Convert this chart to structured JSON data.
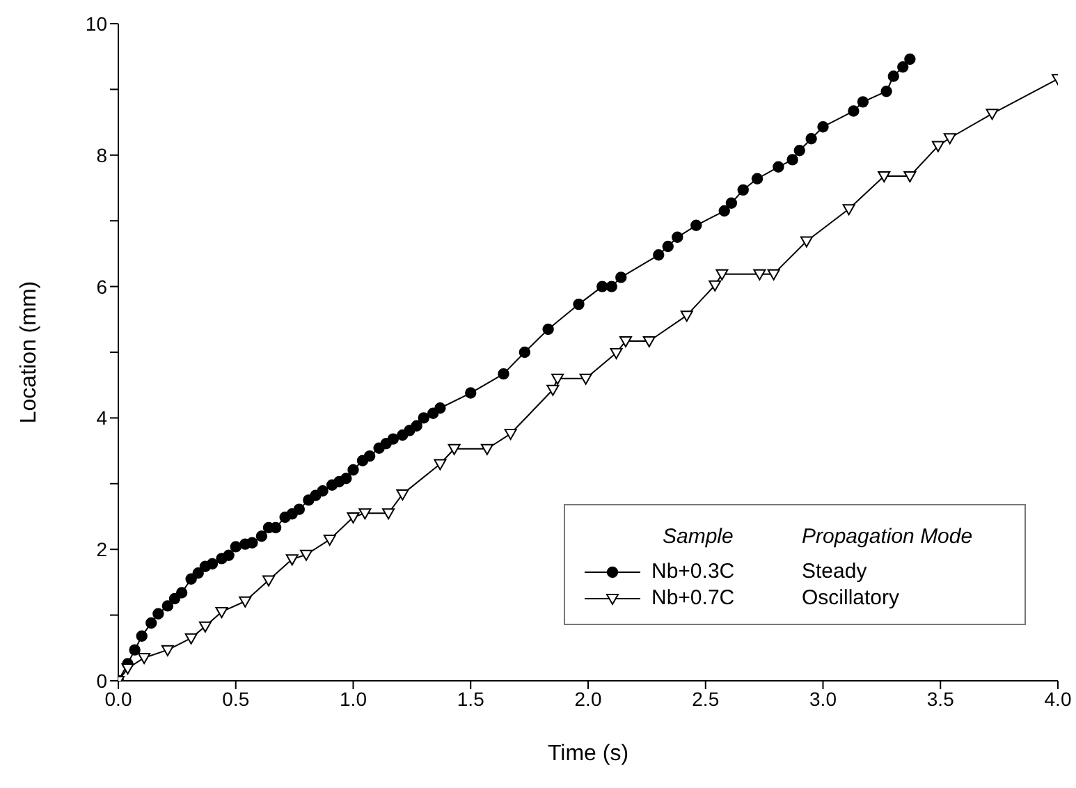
{
  "chart_data": {
    "type": "line",
    "xlabel": "Time (s)",
    "ylabel": "Location (mm)",
    "xlim": [
      0,
      4
    ],
    "xticks": [
      {
        "value": 0,
        "label": "0.0"
      },
      {
        "value": 0.5,
        "label": "0.5"
      },
      {
        "value": 1,
        "label": "1.0"
      },
      {
        "value": 1.5,
        "label": "1.5"
      },
      {
        "value": 2,
        "label": "2.0"
      },
      {
        "value": 2.5,
        "label": "2.5"
      },
      {
        "value": 3,
        "label": "3.0"
      },
      {
        "value": 3.5,
        "label": "3.5"
      },
      {
        "value": 4,
        "label": "4.0"
      }
    ],
    "ylim": [
      0,
      10
    ],
    "yticks": [
      0,
      {
        "value": 1,
        "label": null
      },
      2,
      {
        "value": 3,
        "label": null
      },
      4,
      {
        "value": 5,
        "label": null
      },
      6,
      {
        "value": 7,
        "label": null
      },
      8,
      {
        "value": 9,
        "label": null
      },
      10
    ],
    "grid": false,
    "legend": "bottom right",
    "legend_title": "Sample",
    "annotations": [
      "Propagation Mode",
      "Steady",
      "Oscillatory"
    ],
    "line_style": "solid",
    "series": [
      {
        "name": "Nb+0.3C",
        "color": "#000000",
        "marker": "circle",
        "x": [
          0,
          0.04,
          0.07,
          0.1,
          0.14,
          0.17,
          0.21,
          0.24,
          0.27,
          0.31,
          0.34,
          0.37,
          0.4,
          0.44,
          0.47,
          0.5,
          0.54,
          0.57,
          0.61,
          0.64,
          0.67,
          0.71,
          0.74,
          0.77,
          0.81,
          0.84,
          0.87,
          0.91,
          0.94,
          0.97,
          1.0,
          1.04,
          1.07,
          1.11,
          1.14,
          1.17,
          1.21,
          1.24,
          1.27,
          1.3,
          1.34,
          1.37,
          1.5,
          1.64,
          1.73,
          1.83,
          1.96,
          2.06,
          2.1,
          2.14,
          2.3,
          2.34,
          2.38,
          2.46,
          2.58,
          2.61,
          2.66,
          2.72,
          2.81,
          2.87,
          2.9,
          2.95,
          3.0,
          3.13,
          3.17,
          3.27,
          3.3,
          3.34,
          3.37
        ],
        "values": [
          0,
          0.26,
          0.47,
          0.68,
          0.88,
          1.02,
          1.14,
          1.25,
          1.34,
          1.55,
          1.64,
          1.74,
          1.78,
          1.86,
          1.91,
          2.04,
          2.08,
          2.1,
          2.2,
          2.33,
          2.33,
          2.49,
          2.54,
          2.61,
          2.75,
          2.82,
          2.89,
          2.98,
          3.03,
          3.08,
          3.21,
          3.35,
          3.42,
          3.54,
          3.61,
          3.68,
          3.74,
          3.81,
          3.88,
          4.0,
          4.07,
          4.15,
          4.38,
          4.67,
          5.0,
          5.35,
          5.73,
          6.0,
          6.0,
          6.14,
          6.48,
          6.61,
          6.75,
          6.93,
          7.15,
          7.27,
          7.47,
          7.64,
          7.82,
          7.93,
          8.07,
          8.25,
          8.43,
          8.67,
          8.81,
          8.97,
          9.2,
          9.34,
          9.46
        ]
      },
      {
        "name": "Nb+0.7C",
        "color": "#000000",
        "marker": "triangle",
        "x": [
          0,
          0.04,
          0.11,
          0.21,
          0.31,
          0.37,
          0.44,
          0.54,
          0.64,
          0.74,
          0.8,
          0.9,
          1.0,
          1.05,
          1.15,
          1.21,
          1.37,
          1.43,
          1.57,
          1.67,
          1.85,
          1.87,
          1.99,
          2.12,
          2.16,
          2.26,
          2.42,
          2.54,
          2.57,
          2.73,
          2.79,
          2.93,
          3.11,
          3.26,
          3.37,
          3.49,
          3.54,
          3.72,
          4.0
        ],
        "values": [
          0,
          0.19,
          0.35,
          0.47,
          0.65,
          0.83,
          1.05,
          1.21,
          1.53,
          1.85,
          1.92,
          2.15,
          2.49,
          2.55,
          2.55,
          2.84,
          3.3,
          3.53,
          3.53,
          3.76,
          4.43,
          4.6,
          4.6,
          4.99,
          5.17,
          5.17,
          5.56,
          6.02,
          6.19,
          6.19,
          6.19,
          6.69,
          7.18,
          7.68,
          7.68,
          8.14,
          8.26,
          8.63,
          9.16
        ]
      }
    ]
  }
}
